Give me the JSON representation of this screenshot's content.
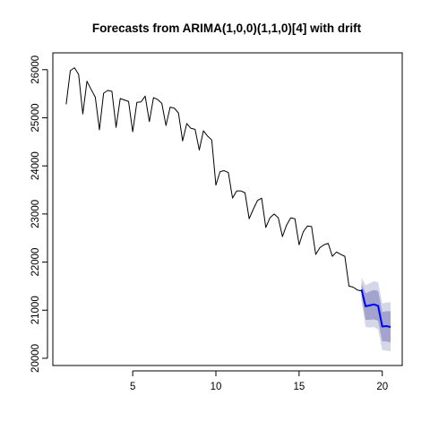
{
  "chart_data": {
    "type": "line",
    "title": "Forecasts from ARIMA(1,0,0)(1,1,0)[4] with drift",
    "xlabel": "",
    "ylabel": "",
    "xlim": [
      0.2,
      21.2
    ],
    "ylim": [
      19850,
      26350
    ],
    "x_ticks": [
      5,
      10,
      15,
      20
    ],
    "y_ticks": [
      20000,
      21000,
      22000,
      23000,
      24000,
      25000,
      26000
    ],
    "x_tick_labels": [
      "5",
      "10",
      "15",
      "20"
    ],
    "y_tick_labels": [
      "20000",
      "21000",
      "22000",
      "23000",
      "24000",
      "25000",
      "26000"
    ],
    "grid": false,
    "legend": "none",
    "colors": {
      "history": "#000000",
      "forecast": "#0000ff",
      "band80": "#a2a4cd",
      "band95": "#d5d6e8"
    },
    "series": [
      {
        "kind": "history",
        "x": [
          1.0,
          1.25,
          1.5,
          1.75,
          2.0,
          2.25,
          2.5,
          2.75,
          3.0,
          3.25,
          3.5,
          3.75,
          4.0,
          4.25,
          4.5,
          4.75,
          5.0,
          5.25,
          5.5,
          5.75,
          6.0,
          6.25,
          6.5,
          6.75,
          7.0,
          7.25,
          7.5,
          7.75,
          8.0,
          8.25,
          8.5,
          8.75,
          9.0,
          9.25,
          9.5,
          9.75,
          10.0,
          10.25,
          10.5,
          10.75,
          11.0,
          11.25,
          11.5,
          11.75,
          12.0,
          12.25,
          12.5,
          12.75,
          13.0,
          13.25,
          13.5,
          13.75,
          14.0,
          14.25,
          14.5,
          14.75,
          15.0,
          15.25,
          15.5,
          15.75,
          16.0,
          16.25,
          16.5,
          16.75,
          17.0,
          17.25,
          17.5,
          17.75,
          18.0,
          18.25,
          18.5,
          18.75
        ],
        "y": [
          25280,
          25980,
          26040,
          25900,
          25080,
          25760,
          25590,
          25430,
          24750,
          25510,
          25570,
          25550,
          24800,
          25400,
          25370,
          25340,
          24710,
          25320,
          25330,
          25450,
          24920,
          25420,
          25380,
          25300,
          24840,
          25220,
          25200,
          25100,
          24520,
          24880,
          24780,
          24760,
          24330,
          24730,
          24620,
          24540,
          23600,
          23880,
          23900,
          23860,
          23330,
          23480,
          23480,
          23440,
          22900,
          23100,
          23280,
          23330,
          22720,
          22920,
          23000,
          22920,
          22530,
          22770,
          22920,
          22900,
          22360,
          22630,
          22750,
          22740,
          22160,
          22300,
          22360,
          22390,
          22120,
          22210,
          22160,
          22120,
          21500,
          21480,
          21420,
          21400
        ]
      },
      {
        "kind": "forecast",
        "x": [
          18.75,
          19.0,
          19.25,
          19.5,
          19.75,
          20.0,
          20.25,
          20.5
        ],
        "y": [
          21430,
          21080,
          21100,
          21120,
          21090,
          20660,
          20670,
          20650
        ]
      }
    ],
    "intervals": {
      "x": [
        18.75,
        19.0,
        19.25,
        19.5,
        19.75,
        20.0,
        20.25,
        20.5
      ],
      "lo80": [
        21300,
        20800,
        20800,
        20810,
        20780,
        20350,
        20350,
        20330
      ],
      "hi80": [
        21560,
        21350,
        21390,
        21420,
        21400,
        20960,
        20980,
        20980
      ],
      "lo95": [
        21190,
        20650,
        20640,
        20650,
        20600,
        20170,
        20160,
        20140
      ],
      "hi95": [
        21680,
        21520,
        21560,
        21600,
        21580,
        21140,
        21160,
        21160
      ]
    }
  }
}
